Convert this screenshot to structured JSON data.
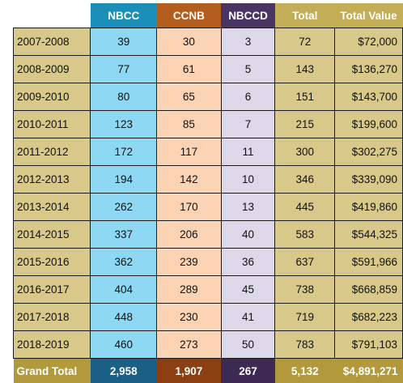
{
  "chart_data": {
    "type": "table",
    "columns": [
      "",
      "NBCC",
      "CCNB",
      "NBCCD",
      "Total",
      "Total Value"
    ],
    "rows": [
      {
        "year": "2007-2008",
        "nbcc": "39",
        "ccnb": "30",
        "nbccd": "3",
        "total": "72",
        "value": "$72,000"
      },
      {
        "year": "2008-2009",
        "nbcc": "77",
        "ccnb": "61",
        "nbccd": "5",
        "total": "143",
        "value": "$136,270"
      },
      {
        "year": "2009-2010",
        "nbcc": "80",
        "ccnb": "65",
        "nbccd": "6",
        "total": "151",
        "value": "$143,700"
      },
      {
        "year": "2010-2011",
        "nbcc": "123",
        "ccnb": "85",
        "nbccd": "7",
        "total": "215",
        "value": "$199,600"
      },
      {
        "year": "2011-2012",
        "nbcc": "172",
        "ccnb": "117",
        "nbccd": "11",
        "total": "300",
        "value": "$302,275"
      },
      {
        "year": "2012-2013",
        "nbcc": "194",
        "ccnb": "142",
        "nbccd": "10",
        "total": "346",
        "value": "$339,090"
      },
      {
        "year": "2013-2014",
        "nbcc": "262",
        "ccnb": "170",
        "nbccd": "13",
        "total": "445",
        "value": "$419,860"
      },
      {
        "year": "2014-2015",
        "nbcc": "337",
        "ccnb": "206",
        "nbccd": "40",
        "total": "583",
        "value": "$544,325"
      },
      {
        "year": "2015-2016",
        "nbcc": "362",
        "ccnb": "239",
        "nbccd": "36",
        "total": "637",
        "value": "$591,966"
      },
      {
        "year": "2016-2017",
        "nbcc": "404",
        "ccnb": "289",
        "nbccd": "45",
        "total": "738",
        "value": "$668,859"
      },
      {
        "year": "2017-2018",
        "nbcc": "448",
        "ccnb": "230",
        "nbccd": "41",
        "total": "719",
        "value": "$682,223"
      },
      {
        "year": "2018-2019",
        "nbcc": "460",
        "ccnb": "273",
        "nbccd": "50",
        "total": "783",
        "value": "$791,103"
      }
    ],
    "grand_total": {
      "label": "Grand Total",
      "nbcc": "2,958",
      "ccnb": "1,907",
      "nbccd": "267",
      "total": "5,132",
      "value": "$4,891,271"
    },
    "colors": {
      "nbcc_header": "#1c8fb8",
      "nbcc_cell": "#8fd8f4",
      "ccnb_header": "#b25c1e",
      "ccnb_cell": "#fad3b5",
      "nbccd_header": "#4a3463",
      "nbccd_cell": "#dcd8e9",
      "total_header": "#c4ad57",
      "total_cell": "#d8c98a"
    }
  }
}
